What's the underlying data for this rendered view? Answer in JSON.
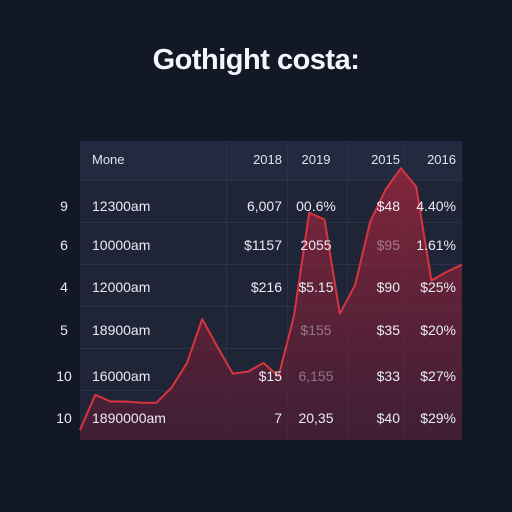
{
  "title": "Gothight costa:",
  "table": {
    "header": [
      "Mone",
      "2018",
      "2019",
      "2015",
      "2016"
    ],
    "rows": [
      {
        "num": "9",
        "cells": [
          "12300am",
          "6,007",
          "00.6%",
          "$48",
          "4.40%"
        ]
      },
      {
        "num": "6",
        "cells": [
          "10000am",
          "$1157",
          "2055",
          "$95",
          "1.61%"
        ]
      },
      {
        "num": "4",
        "cells": [
          "12000am",
          "$216",
          "$5.15",
          "$90",
          "$25%"
        ]
      },
      {
        "num": "5",
        "cells": [
          "18900am",
          "",
          "$155",
          "$35",
          "$20%"
        ]
      },
      {
        "num": "10",
        "cells": [
          "16000am",
          "$15",
          "6,155",
          "$33",
          "$27%"
        ]
      },
      {
        "num": "10",
        "cells": [
          "1890000am",
          "7",
          "20,35",
          "$40",
          "$29%"
        ]
      }
    ]
  },
  "chart_data": {
    "type": "area",
    "x": [
      0,
      1,
      2,
      3,
      4,
      5,
      6,
      7,
      8,
      9,
      10,
      11,
      12,
      13,
      14,
      15,
      16,
      17,
      18,
      19,
      20,
      21,
      22,
      23,
      24,
      25
    ],
    "series": [
      {
        "values": [
          1.5,
          6.8,
          5.8,
          5.8,
          5.6,
          5.6,
          7.9,
          11.6,
          18.2,
          14.0,
          10.0,
          10.3,
          11.6,
          9.6,
          18.6,
          34.2,
          33.2,
          19.0,
          23.3,
          32.9,
          37.7,
          40.9,
          38.1,
          24.0,
          25.3,
          26.4
        ]
      }
    ],
    "ylim": [
      0,
      45
    ],
    "color": "#d8343f",
    "fill": "#8b1f35"
  }
}
